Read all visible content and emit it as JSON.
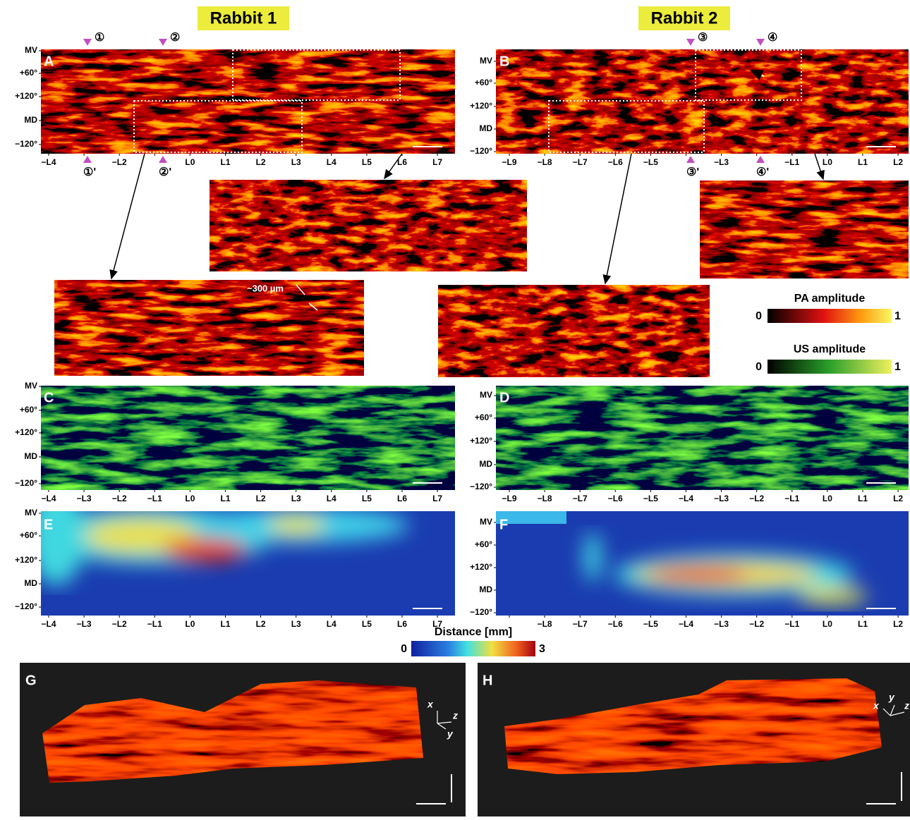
{
  "titles": [
    "Rabbit 1",
    "Rabbit 2"
  ],
  "y_labels": [
    "MV",
    "+60°",
    "+120°",
    "MD",
    "−120°"
  ],
  "panels": [
    {
      "label": "A",
      "x_labels": [
        "−L4",
        null,
        "−L2",
        null,
        "L0",
        "L1",
        "L2",
        "L3",
        "L4",
        "L5",
        "L6",
        "L7"
      ]
    },
    {
      "label": "B",
      "x_labels": [
        "−L9",
        "−L8",
        "−L7",
        "−L6",
        "−L5",
        null,
        "−L3",
        null,
        "−L1",
        "L0",
        "L1",
        "L2"
      ]
    },
    {
      "label": "C",
      "x_labels": [
        "−L4",
        "−L3",
        "−L2",
        "−L1",
        "L0",
        "L1",
        "L2",
        "L3",
        "L4",
        "L5",
        "L6",
        "L7"
      ]
    },
    {
      "label": "D",
      "x_labels": [
        "−L9",
        "−L8",
        "−L7",
        "−L6",
        "−L5",
        "−L4",
        "−L3",
        "−L2",
        "−L1",
        "L0",
        "L1",
        "L2"
      ]
    },
    {
      "label": "E",
      "x_labels": [
        "−L4",
        "−L3",
        "−L2",
        "−L1",
        "L0",
        "L1",
        "L2",
        "L3",
        "L4",
        "L5",
        "L6",
        "L7"
      ]
    },
    {
      "label": "F",
      "x_labels": [
        null,
        "−L8",
        "−L7",
        "−L6",
        "−L5",
        "−L4",
        "−L3",
        "−L2",
        "−L1",
        "L0",
        "L1",
        "L2"
      ]
    },
    {
      "label": "G"
    },
    {
      "label": "H"
    }
  ],
  "markers": [
    {
      "label": "①",
      "prime_label": "①'"
    },
    {
      "label": "②",
      "prime_label": "②'"
    },
    {
      "label": "③",
      "prime_label": "③'"
    },
    {
      "label": "④",
      "prime_label": "④'"
    }
  ],
  "annotation": "~300 µm",
  "colorbars": [
    {
      "title": "PA amplitude",
      "min": "0",
      "max": "1"
    },
    {
      "title": "US amplitude",
      "min": "0",
      "max": "1"
    },
    {
      "title": "Distance [mm]",
      "min": "0",
      "max": "3"
    }
  ],
  "axes_3d": [
    [
      "x",
      "z",
      "y"
    ],
    [
      "x",
      "y",
      "z"
    ]
  ]
}
